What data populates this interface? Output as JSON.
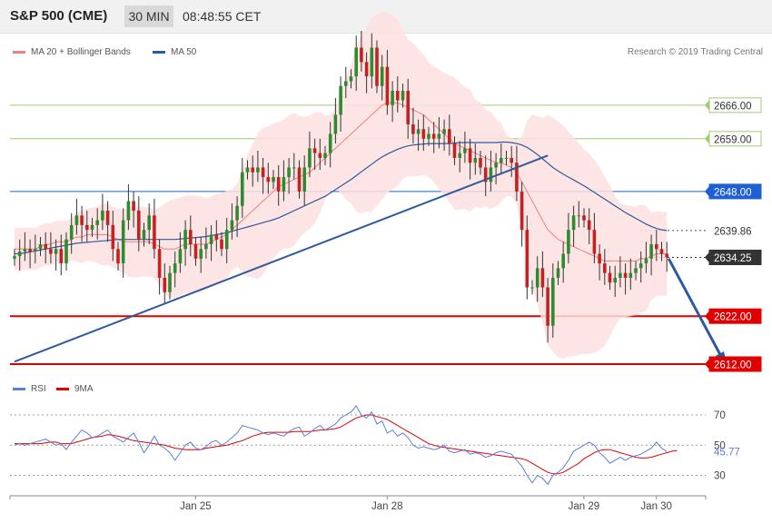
{
  "header": {
    "title": "S&P 500 (CME)",
    "timeframe": "30 MIN",
    "time": "08:48:55 CET"
  },
  "legend": {
    "ma20": "MA 20 + Bollinger Bands",
    "ma50": "MA 50",
    "credit": "Research © 2019 Trading Central",
    "ma20_color": "#f08080",
    "ma50_color": "#2d5a9c"
  },
  "rsi_legend": {
    "rsi": "RSI",
    "ma9": "9MA",
    "rsi_color": "#5b7fd6",
    "ma9_color": "#e00000"
  },
  "chart_data": [
    {
      "type": "candlestick",
      "ylim": [
        2607,
        2683
      ],
      "y_ticks": [
        2666.0,
        2659.0,
        2648.0,
        2639.86,
        2634.25,
        2622.0,
        2612.0
      ],
      "levels": [
        {
          "label": "2666.00",
          "value": 2666.0,
          "kind": "resistance",
          "color": "#9fcc6f"
        },
        {
          "label": "2659.00",
          "value": 2659.0,
          "kind": "resistance",
          "color": "#9fcc6f"
        },
        {
          "label": "2648.00",
          "value": 2648.0,
          "kind": "pivot",
          "color": "#1f5fd6"
        },
        {
          "label": "2639.86",
          "value": 2639.86,
          "kind": "ma",
          "color": "#555555"
        },
        {
          "label": "2634.25",
          "value": 2634.25,
          "kind": "last",
          "color": "#333333"
        },
        {
          "label": "2622.00",
          "value": 2622.0,
          "kind": "support",
          "color": "#e00000"
        },
        {
          "label": "2612.00",
          "value": 2612.0,
          "kind": "support",
          "color": "#e00000"
        }
      ],
      "x_labels": [
        "Jan 25",
        "Jan 28",
        "Jan 29",
        "Jan 30"
      ],
      "close": [
        2634.5,
        2635.5,
        2636,
        2635.5,
        2636,
        2637,
        2636,
        2635,
        2636,
        2633,
        2638,
        2641,
        2643,
        2641,
        2640,
        2641,
        2642,
        2644,
        2641,
        2636,
        2633,
        2642,
        2646,
        2644,
        2638,
        2640,
        2643,
        2636,
        2630,
        2627,
        2631,
        2633,
        2636,
        2640,
        2637,
        2634,
        2636,
        2637,
        2639,
        2638,
        2636,
        2640,
        2642,
        2645,
        2652,
        2653,
        2652,
        2653,
        2651,
        2650,
        2651,
        2648,
        2651,
        2653,
        2653,
        2648,
        2653,
        2657,
        2656,
        2655,
        2656,
        2660,
        2664,
        2670,
        2671,
        2672,
        2678,
        2675,
        2672,
        2678,
        2670,
        2674,
        2666,
        2669,
        2667,
        2669,
        2662,
        2660,
        2661,
        2659,
        2660,
        2659,
        2660,
        2661,
        2658,
        2655,
        2656,
        2657,
        2654,
        2655,
        2653,
        2650,
        2653,
        2654,
        2655,
        2655,
        2654,
        2648,
        2640,
        2628,
        2628,
        2632,
        2628,
        2620,
        2630,
        2632,
        2635,
        2640,
        2643,
        2643,
        2642,
        2640,
        2635,
        2633,
        2631,
        2629,
        2630,
        2631,
        2630,
        2631,
        2632,
        2633,
        2634,
        2637,
        2636,
        2635,
        2634.25
      ],
      "open": [
        2634,
        2634.5,
        2635.5,
        2636,
        2635.5,
        2636,
        2637,
        2636,
        2635,
        2636,
        2633,
        2638,
        2641,
        2643,
        2641,
        2640,
        2641,
        2642,
        2644,
        2641,
        2636,
        2633,
        2642,
        2646,
        2644,
        2638,
        2640,
        2643,
        2636,
        2630,
        2627,
        2631,
        2633,
        2636,
        2640,
        2637,
        2634,
        2636,
        2637,
        2639,
        2638,
        2636,
        2640,
        2642,
        2645,
        2652,
        2653,
        2652,
        2653,
        2651,
        2650,
        2651,
        2648,
        2651,
        2653,
        2653,
        2648,
        2653,
        2657,
        2656,
        2655,
        2656,
        2660,
        2664,
        2670,
        2671,
        2672,
        2678,
        2675,
        2672,
        2678,
        2670,
        2674,
        2666,
        2669,
        2667,
        2669,
        2662,
        2660,
        2661,
        2659,
        2660,
        2659,
        2660,
        2661,
        2658,
        2655,
        2656,
        2657,
        2654,
        2655,
        2653,
        2650,
        2653,
        2654,
        2655,
        2655,
        2654,
        2648,
        2640,
        2628,
        2628,
        2632,
        2628,
        2620,
        2630,
        2632,
        2635,
        2640,
        2643,
        2643,
        2642,
        2640,
        2635,
        2633,
        2631,
        2629,
        2630,
        2631,
        2630,
        2631,
        2632,
        2633,
        2634,
        2637,
        2636,
        2635
      ],
      "ma20": [
        2636,
        2636,
        2636,
        2636,
        2636,
        2636.5,
        2637,
        2637,
        2637.5,
        2637.5,
        2637.5,
        2638,
        2638.5,
        2638.5,
        2639,
        2639,
        2639,
        2639,
        2639,
        2638.5,
        2638,
        2637.5,
        2637.5,
        2637.5,
        2637.5,
        2637.5,
        2637.5,
        2637,
        2636.5,
        2636,
        2636,
        2636,
        2636.5,
        2637,
        2637,
        2637,
        2637,
        2637,
        2637.5,
        2638,
        2638.5,
        2639,
        2640,
        2641,
        2642,
        2643,
        2644,
        2645,
        2646,
        2647,
        2648,
        2649,
        2649.5,
        2650,
        2650.5,
        2651,
        2651.5,
        2652,
        2653,
        2654,
        2655,
        2656,
        2657,
        2658,
        2659,
        2660,
        2661,
        2662,
        2663,
        2664,
        2665,
        2666,
        2666.5,
        2666.5,
        2666.5,
        2666,
        2665.5,
        2665,
        2664.5,
        2664,
        2663,
        2662,
        2661,
        2660,
        2659,
        2658,
        2657.5,
        2657,
        2656.5,
        2656,
        2655.5,
        2655,
        2654.5,
        2654,
        2654,
        2653.5,
        2653,
        2652,
        2650,
        2648,
        2646,
        2644,
        2642,
        2640,
        2639,
        2638,
        2637.5,
        2637,
        2636.5,
        2636,
        2635.5,
        2635,
        2634.5,
        2634,
        2633.5,
        2633.5,
        2633.5,
        2633.5,
        2633.5,
        2633.5,
        2633.5,
        2634,
        2634,
        2634.5,
        2635,
        2635,
        2635
      ],
      "ma50": [
        2635,
        2635,
        2635.2,
        2635.4,
        2635.6,
        2635.8,
        2636,
        2636.2,
        2636.4,
        2636.6,
        2636.8,
        2637,
        2637.2,
        2637.3,
        2637.4,
        2637.5,
        2637.6,
        2637.7,
        2637.8,
        2637.9,
        2638,
        2638,
        2638,
        2638,
        2638,
        2638,
        2638,
        2638,
        2638,
        2638,
        2638,
        2638,
        2638.1,
        2638.2,
        2638.3,
        2638.4,
        2638.5,
        2638.6,
        2638.8,
        2639,
        2639.2,
        2639.4,
        2639.7,
        2640,
        2640.3,
        2640.6,
        2640.9,
        2641.2,
        2641.5,
        2641.8,
        2642.1,
        2642.5,
        2643,
        2643.5,
        2644,
        2644.5,
        2645,
        2645.5,
        2646,
        2646.5,
        2647,
        2647.7,
        2648.4,
        2649.1,
        2649.8,
        2650.5,
        2651.3,
        2652.1,
        2652.9,
        2653.7,
        2654.5,
        2655.2,
        2655.8,
        2656.3,
        2656.8,
        2657.2,
        2657.5,
        2657.7,
        2657.8,
        2657.9,
        2658,
        2658,
        2658,
        2658,
        2658,
        2658.1,
        2658.2,
        2658.2,
        2658.2,
        2658.2,
        2658.2,
        2658.2,
        2658.2,
        2658.2,
        2658.3,
        2658.3,
        2658.2,
        2658,
        2657.7,
        2657.2,
        2656.5,
        2655.7,
        2654.8,
        2653.9,
        2653,
        2652.3,
        2651.6,
        2651,
        2650.4,
        2649.8,
        2649.2,
        2648.5,
        2647.8,
        2647.1,
        2646.4,
        2645.7,
        2645,
        2644.3,
        2643.6,
        2643,
        2642.4,
        2641.8,
        2641.2,
        2640.7,
        2640.3,
        2640,
        2639.86
      ],
      "trendline": {
        "from": {
          "index": 0,
          "value": 2612.5
        },
        "to": {
          "index": 103,
          "value": 2655.5
        }
      },
      "projection": {
        "from": {
          "index": 126,
          "value": 2634
        },
        "to": {
          "index": 135,
          "value": 2612
        }
      }
    },
    {
      "type": "line",
      "name": "RSI",
      "ylim": [
        15,
        85
      ],
      "y_ticks": [
        70,
        50,
        30
      ],
      "last_value": "45.77",
      "rsi": [
        50,
        51,
        50,
        51,
        52,
        53,
        54,
        52,
        50,
        51,
        47,
        52,
        56,
        60,
        58,
        55,
        56,
        58,
        60,
        56,
        54,
        52,
        55,
        58,
        52,
        45,
        50,
        56,
        50,
        48,
        45,
        40,
        45,
        50,
        52,
        48,
        47,
        49,
        52,
        53,
        50,
        52,
        55,
        58,
        63,
        62,
        61,
        60,
        58,
        57,
        58,
        57,
        56,
        59,
        61,
        62,
        56,
        58,
        61,
        63,
        60,
        62,
        64,
        68,
        70,
        72,
        76,
        70,
        68,
        72,
        64,
        66,
        58,
        60,
        56,
        58,
        55,
        50,
        48,
        49,
        48,
        47,
        48,
        50,
        46,
        45,
        46,
        47,
        44,
        45,
        44,
        42,
        43,
        45,
        46,
        45,
        44,
        40,
        36,
        30,
        25,
        30,
        28,
        24,
        30,
        32,
        35,
        40,
        46,
        48,
        50,
        52,
        50,
        45,
        42,
        38,
        40,
        42,
        40,
        42,
        43,
        44,
        46,
        48,
        52,
        48,
        45.77
      ],
      "ma9": [
        51,
        51,
        51,
        51,
        51,
        51,
        51.5,
        52,
        52,
        51,
        51,
        51,
        52,
        53,
        54,
        55,
        55.5,
        56,
        57,
        56.5,
        56,
        55,
        54,
        53,
        52.5,
        52,
        51.5,
        51,
        50.5,
        50,
        49,
        48,
        47.5,
        47,
        47,
        47,
        47,
        48,
        48.5,
        49,
        49.5,
        50,
        51,
        52,
        53,
        54.5,
        56,
        57,
        58,
        58.5,
        58.5,
        58.5,
        58.5,
        58.5,
        59,
        59,
        59,
        59,
        59.5,
        60,
        60,
        60.5,
        61,
        62,
        64,
        66,
        68,
        69,
        70,
        70,
        69,
        68,
        67,
        65,
        63,
        61,
        59,
        57,
        55,
        53,
        51,
        50,
        49,
        48.5,
        48,
        47.5,
        47,
        46.5,
        46,
        45.5,
        45,
        44.5,
        44,
        43.5,
        43,
        42.5,
        42,
        41.5,
        41,
        40,
        38,
        36,
        34,
        32,
        31,
        31,
        32,
        34,
        36,
        38,
        41,
        43,
        45,
        46.5,
        47,
        47,
        46,
        45,
        44,
        43,
        42,
        41.5,
        41.5,
        42,
        43,
        44,
        45,
        46,
        46.5
      ]
    }
  ]
}
